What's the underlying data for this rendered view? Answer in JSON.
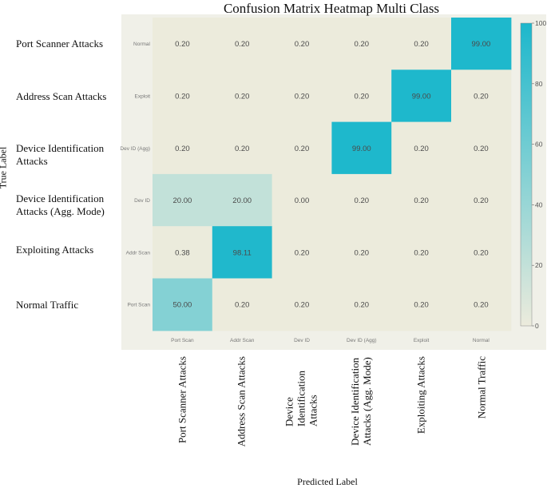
{
  "chart_data": {
    "type": "heatmap",
    "title": "Confusion Matrix Heatmap Multi Class",
    "xlabel": "Predicted Label",
    "ylabel": "True Label",
    "inner_row_ticks": [
      "Normal",
      "Exploit",
      "Dev ID (Agg)",
      "Dev ID",
      "Addr Scan",
      "Port Scan"
    ],
    "inner_col_ticks": [
      "Port Scan",
      "Addr Scan",
      "Dev ID",
      "Dev ID (Agg)",
      "Exploit",
      "Normal"
    ],
    "row_labels": [
      "Port Scanner Attacks",
      "Address Scan Attacks",
      "Device Identification Attacks",
      "Device Identification Attacks (Agg. Mode)",
      "Exploiting Attacks",
      "Normal Traffic"
    ],
    "col_labels": [
      "Port Scanner Attacks",
      "Address Scan Attacks",
      "Device Identification Attacks",
      "Device Identification Attacks (Agg. Mode)",
      "Exploiting Attacks",
      "Normal Traffic"
    ],
    "cells": [
      [
        "0.20",
        "0.20",
        "0.20",
        "0.20",
        "0.20",
        "99.00"
      ],
      [
        "0.20",
        "0.20",
        "0.20",
        "0.20",
        "99.00",
        "0.20"
      ],
      [
        "0.20",
        "0.20",
        "0.20",
        "99.00",
        "0.20",
        "0.20"
      ],
      [
        "20.00",
        "20.00",
        "0.00",
        "0.20",
        "0.20",
        "0.20"
      ],
      [
        "0.38",
        "98.11",
        "0.20",
        "0.20",
        "0.20",
        "0.20"
      ],
      [
        "50.00",
        "0.20",
        "0.20",
        "0.20",
        "0.20",
        "0.20"
      ]
    ],
    "colorbar": {
      "min": 0,
      "max": 100,
      "ticks": [
        "0",
        "20",
        "40",
        "60",
        "80",
        "100"
      ]
    },
    "colors": {
      "low": "#ecebdc",
      "high": "#1cb7cc",
      "panel": "#f0f0e8"
    }
  }
}
